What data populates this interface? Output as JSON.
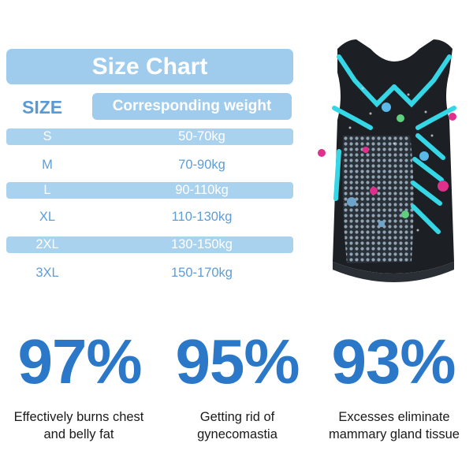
{
  "size_chart": {
    "title": "Size Chart",
    "size_header": "SIZE",
    "weight_header": "Corresponding weight",
    "rows": [
      {
        "size": "S",
        "weight": "50-70kg",
        "shaded": true
      },
      {
        "size": "M",
        "weight": "70-90kg",
        "shaded": false
      },
      {
        "size": "L",
        "weight": "90-110kg",
        "shaded": true
      },
      {
        "size": "XL",
        "weight": "110-130kg",
        "shaded": false
      },
      {
        "size": "2XL",
        "weight": "130-150kg",
        "shaded": true
      },
      {
        "size": "3XL",
        "weight": "150-170kg",
        "shaded": false
      }
    ]
  },
  "stats": [
    {
      "percent": "97%",
      "line1": "Effectively burns chest",
      "line2": "and belly fat"
    },
    {
      "percent": "95%",
      "line1": "Getting rid of",
      "line2": "gynecomastia"
    },
    {
      "percent": "93%",
      "line1": "Excesses eliminate",
      "line2": "mammary gland tissue"
    }
  ],
  "colors": {
    "accent_light": "#9fcbec",
    "accent_text": "#5e9dd6",
    "percent_blue": "#2b78c8",
    "vest_body": "#1c1f24",
    "vest_cyan": "#35d6e6",
    "vest_pink": "#e0308c"
  }
}
